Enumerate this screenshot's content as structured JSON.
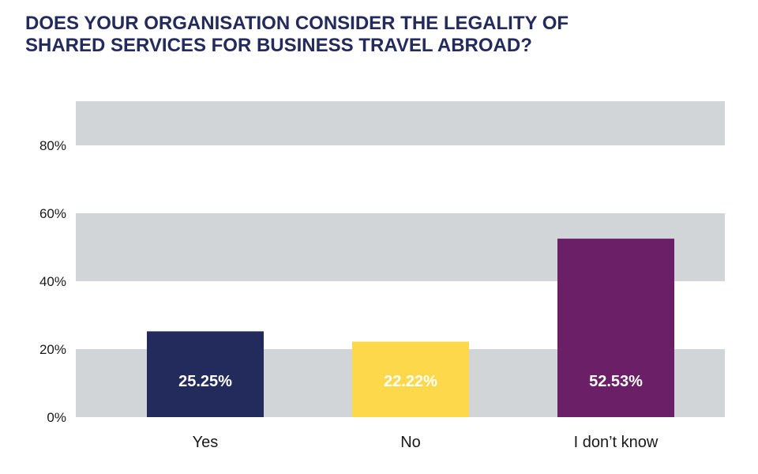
{
  "title_lines": [
    "DOES YOUR ORGANISATION CONSIDER THE LEGALITY OF",
    "SHARED SERVICES FOR BUSINESS TRAVEL ABROAD?"
  ],
  "colors": {
    "title": "#232a5c",
    "band": "#d1d5d8",
    "axis_text": "#1a1a1a",
    "value_label": "#ffffff"
  },
  "chart_data": {
    "type": "bar",
    "title": "DOES YOUR ORGANISATION CONSIDER THE LEGALITY OF SHARED SERVICES FOR BUSINESS TRAVEL ABROAD?",
    "categories": [
      "Yes",
      "No",
      "I don’t know"
    ],
    "values": [
      25.25,
      22.22,
      52.53
    ],
    "value_labels": [
      "25.25%",
      "22.22%",
      "52.53%"
    ],
    "bar_colors": [
      "#232a5c",
      "#fdd84a",
      "#6b1f66"
    ],
    "y_ticks": [
      0,
      20,
      40,
      60,
      80
    ],
    "y_tick_labels": [
      "0%",
      "20%",
      "40%",
      "60%",
      "80%"
    ],
    "ylim": [
      0,
      93
    ],
    "xlabel": "",
    "ylabel": "",
    "grid": "alternating horizontal bands",
    "legend": "none"
  }
}
